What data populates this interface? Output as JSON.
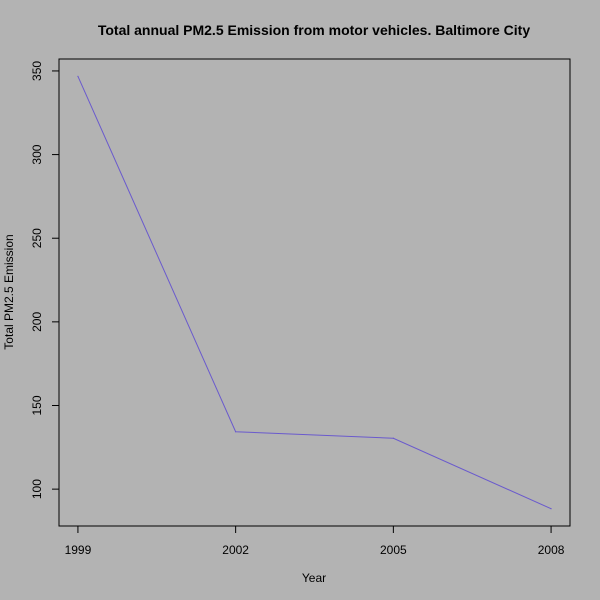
{
  "chart_data": {
    "type": "line",
    "title": "Total annual PM2.5 Emission from motor vehicles. Baltimore City",
    "xlabel": "Year",
    "ylabel": "Total PM2.5 Emission",
    "x": [
      1999,
      2002,
      2005,
      2008
    ],
    "series": [
      {
        "values": [
          346.8,
          134.3,
          130.4,
          88.3
        ],
        "color": "#6a5acd"
      }
    ],
    "xlim": [
      1999,
      2008
    ],
    "ylim": [
      88.3,
      346.8
    ],
    "xticks": [
      1999,
      2002,
      2005,
      2008
    ],
    "yticks": [
      100,
      150,
      200,
      250,
      300,
      350
    ],
    "xtick_labels": [
      "1999",
      "2002",
      "2005",
      "2008"
    ],
    "ytick_labels": [
      "100",
      "150",
      "200",
      "250",
      "300",
      "350"
    ],
    "grid": false,
    "legend": "none",
    "background_color": "#b3b3b3",
    "axis_color": "#000000"
  }
}
